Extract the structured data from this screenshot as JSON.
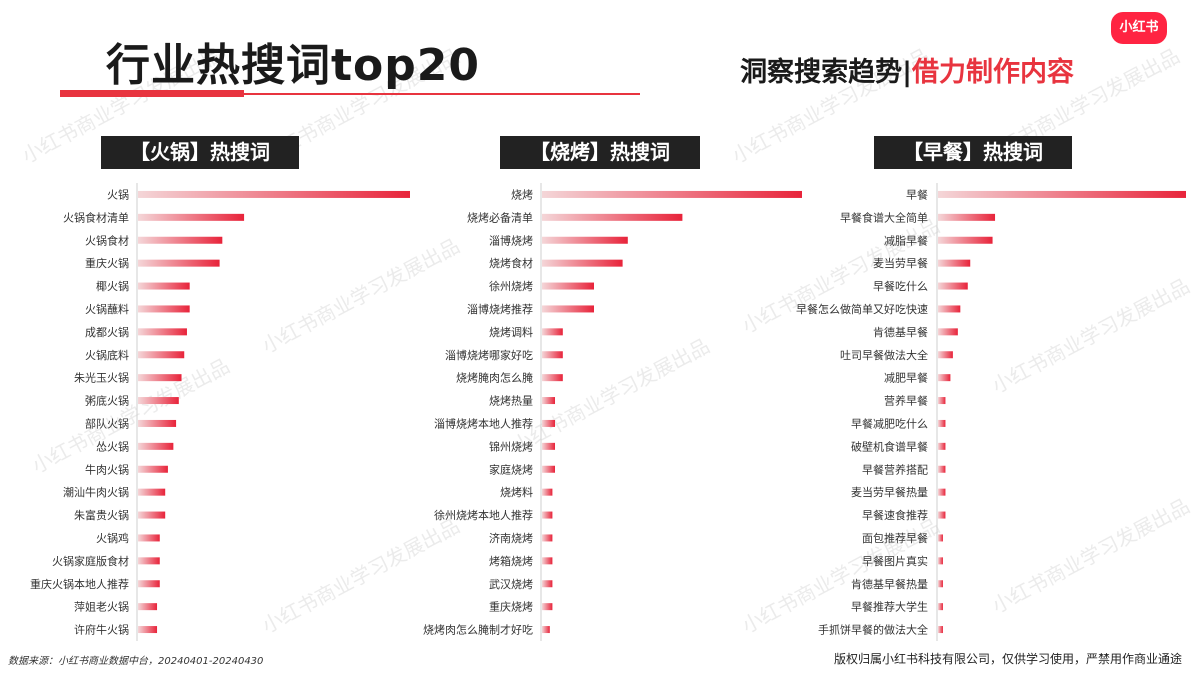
{
  "header": {
    "title": "行业热搜词top20",
    "tagline_left": "洞察搜索趋势|",
    "tagline_right": "借力制作内容",
    "logo_text": "小红书",
    "accent_color": "#e8343f"
  },
  "watermark_text": "小红书商业学习发展出品",
  "footer": {
    "source": "数据来源：小红书商业数据中台，20240401-20240430",
    "copyright": "版权归属小红书科技有限公司，仅供学习使用，严禁用作商业通途"
  },
  "chart_data": [
    {
      "type": "bar",
      "orientation": "horizontal",
      "title": "【火锅】热搜词",
      "categories": [
        "火锅",
        "火锅食材清单",
        "火锅食材",
        "重庆火锅",
        "椰火锅",
        "火锅蘸料",
        "成都火锅",
        "火锅底料",
        "朱光玉火锅",
        "粥底火锅",
        "部队火锅",
        "怂火锅",
        "牛肉火锅",
        "潮汕牛肉火锅",
        "朱富贵火锅",
        "火锅鸡",
        "火锅家庭版食材",
        "重庆火锅本地人推荐",
        "萍姐老火锅",
        "许府牛火锅"
      ],
      "values": [
        100,
        39,
        31,
        30,
        19,
        19,
        18,
        17,
        16,
        15,
        14,
        13,
        11,
        10,
        10,
        8,
        8,
        8,
        7,
        7
      ],
      "xlim": [
        0,
        100
      ],
      "xlabel": "",
      "ylabel": ""
    },
    {
      "type": "bar",
      "orientation": "horizontal",
      "title": "【烧烤】热搜词",
      "categories": [
        "烧烤",
        "烧烤必备清单",
        "淄博烧烤",
        "烧烤食材",
        "徐州烧烤",
        "淄博烧烤推荐",
        "烧烤调料",
        "淄博烧烤哪家好吃",
        "烧烤腌肉怎么腌",
        "烧烤热量",
        "淄博烧烤本地人推荐",
        "锦州烧烤",
        "家庭烧烤",
        "烧烤料",
        "徐州烧烤本地人推荐",
        "济南烧烤",
        "烤箱烧烤",
        "武汉烧烤",
        "重庆烧烤",
        "烧烤肉怎么腌制才好吃"
      ],
      "values": [
        100,
        54,
        33,
        31,
        20,
        20,
        8,
        8,
        8,
        5,
        5,
        5,
        5,
        4,
        4,
        4,
        4,
        4,
        4,
        3
      ],
      "xlim": [
        0,
        100
      ],
      "xlabel": "",
      "ylabel": ""
    },
    {
      "type": "bar",
      "orientation": "horizontal",
      "title": "【早餐】热搜词",
      "categories": [
        "早餐",
        "早餐食谱大全简单",
        "减脂早餐",
        "麦当劳早餐",
        "早餐吃什么",
        "早餐怎么做简单又好吃快速",
        "肯德基早餐",
        "吐司早餐做法大全",
        "减肥早餐",
        "营养早餐",
        "早餐减肥吃什么",
        "破壁机食谱早餐",
        "早餐营养搭配",
        "麦当劳早餐热量",
        "早餐速食推荐",
        "面包推荐早餐",
        "早餐图片真实",
        "肯德基早餐热量",
        "早餐推荐大学生",
        "手抓饼早餐的做法大全"
      ],
      "values": [
        100,
        23,
        22,
        13,
        12,
        9,
        8,
        6,
        5,
        3,
        3,
        3,
        3,
        3,
        3,
        2,
        2,
        2,
        2,
        2
      ],
      "xlim": [
        0,
        100
      ],
      "xlabel": "",
      "ylabel": ""
    }
  ]
}
